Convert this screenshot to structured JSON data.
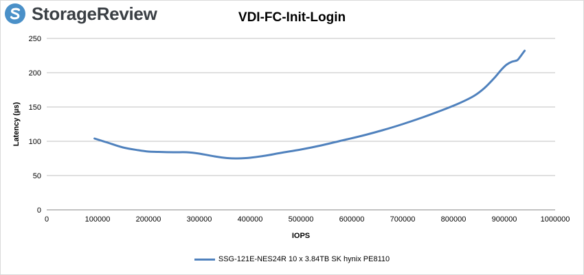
{
  "brand": {
    "name": "StorageReview",
    "colors": {
      "accent": "#4a90c8",
      "text": "#3a3f44"
    }
  },
  "chart_data": {
    "type": "line",
    "title": "VDI-FC-Init-Login",
    "xlabel": "IOPS",
    "ylabel": "Latency (µs)",
    "xlim": [
      0,
      1000000
    ],
    "ylim": [
      0,
      250
    ],
    "xticks": [
      0,
      100000,
      200000,
      300000,
      400000,
      500000,
      600000,
      700000,
      800000,
      900000,
      1000000
    ],
    "yticks": [
      0,
      50,
      100,
      150,
      200,
      250
    ],
    "grid": {
      "horizontal": true,
      "vertical": false
    },
    "legend": "bottom",
    "series": [
      {
        "name": "SSG-121E-NES24R 10 x 3.84TB SK hynix PE8110",
        "color": "#4f81bd",
        "x": [
          94000,
          120000,
          150000,
          180000,
          200000,
          220000,
          250000,
          275000,
          300000,
          330000,
          355000,
          375000,
          400000,
          430000,
          460000,
          500000,
          540000,
          580000,
          620000,
          660000,
          700000,
          740000,
          780000,
          810000,
          840000,
          860000,
          880000,
          895000,
          905000,
          915000,
          925000,
          930000,
          935000,
          940000
        ],
        "y": [
          104,
          98,
          91,
          87,
          85,
          84.5,
          84,
          84,
          82,
          78,
          75.5,
          75,
          76,
          79,
          83,
          88,
          94,
          101,
          108,
          116,
          125,
          135,
          146,
          155,
          166,
          177,
          192,
          205,
          212,
          216,
          218,
          222,
          227,
          232
        ]
      }
    ]
  }
}
